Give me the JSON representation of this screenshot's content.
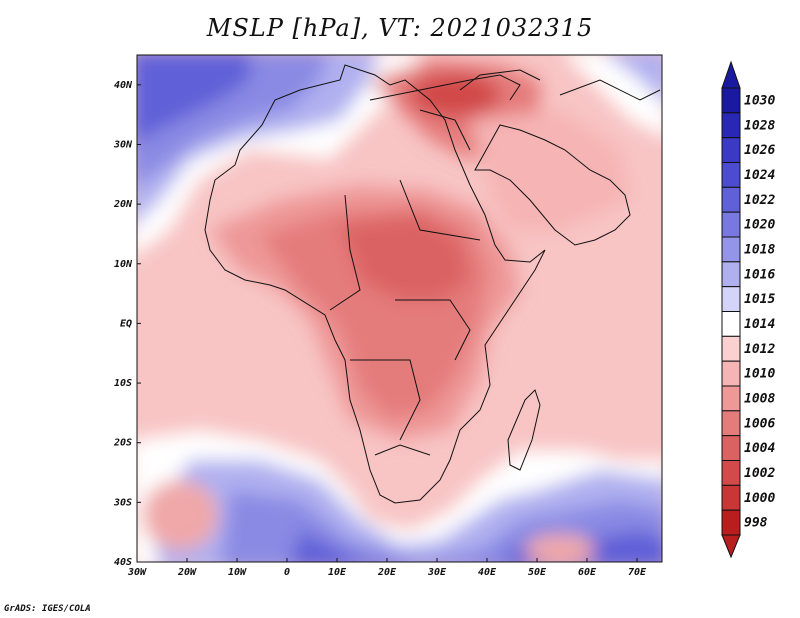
{
  "title": "MSLP [hPa], VT: 2021032315",
  "credit": "GrADS: IGES/COLA",
  "map": {
    "lon_range": [
      -30,
      75
    ],
    "lat_range": [
      -40,
      45
    ],
    "lat_labels": [
      "40N",
      "30N",
      "20N",
      "10N",
      "EQ",
      "10S",
      "20S",
      "30S",
      "40S"
    ],
    "lat_values": [
      40,
      30,
      20,
      10,
      0,
      -10,
      -20,
      -30,
      -40
    ],
    "lon_labels": [
      "30W",
      "20W",
      "10W",
      "0",
      "10E",
      "20E",
      "30E",
      "40E",
      "50E",
      "60E",
      "70E"
    ],
    "lon_values": [
      -30,
      -20,
      -10,
      0,
      10,
      20,
      30,
      40,
      50,
      60,
      70
    ]
  },
  "colorbar": {
    "levels": [
      "1030",
      "1028",
      "1026",
      "1024",
      "1022",
      "1020",
      "1018",
      "1016",
      "1015",
      "1014",
      "1012",
      "1010",
      "1008",
      "1006",
      "1004",
      "1002",
      "1000",
      "998"
    ],
    "colors": [
      "#1a1aa0",
      "#2828b4",
      "#3a3ac4",
      "#4c4cd0",
      "#6060d8",
      "#7878e0",
      "#9494e8",
      "#b0b0f0",
      "#d4d4f8",
      "#ffffff",
      "#fbd0d0",
      "#f6b4b4",
      "#ee9898",
      "#e57c7c",
      "#db6262",
      "#d24a4a",
      "#c83636",
      "#b81e1e"
    ],
    "top_color": "#1a1aa0",
    "bottom_color": "#b81e1e"
  }
}
